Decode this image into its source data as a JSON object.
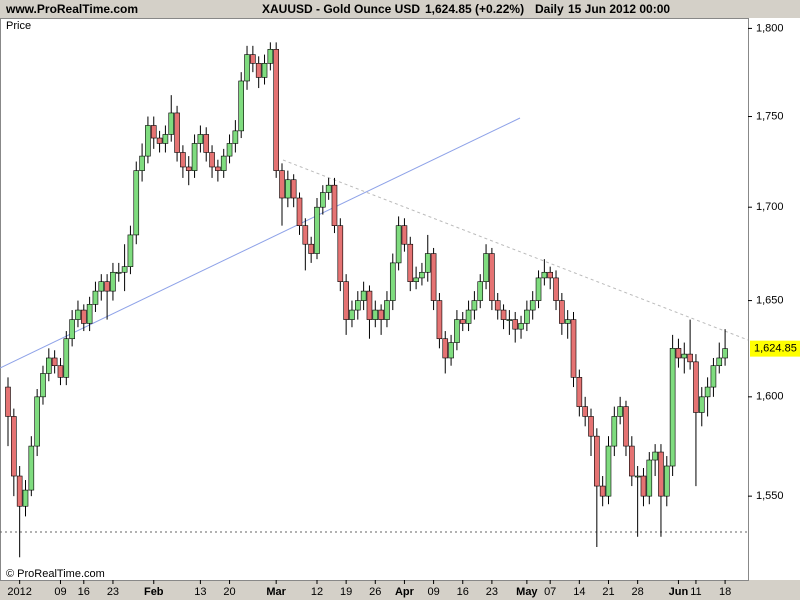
{
  "header": {
    "site": "www.ProRealTime.com",
    "instrument": "XAUUSD - Gold Ounce USD",
    "quote": "1,624.85 (+0.22%)",
    "period": "Daily",
    "datetime": "15 Jun 2012 00:00"
  },
  "chart_data": {
    "type": "candlestick",
    "panel_label": "Price",
    "copyright": "© ProRealTime.com",
    "log_scale": true,
    "up_color": "#7fdc7f",
    "down_color": "#e57373",
    "ylim": [
      1509,
      1806
    ],
    "yticks": [
      {
        "value": 1550,
        "label": "1,550"
      },
      {
        "value": 1600,
        "label": "1,600"
      },
      {
        "value": 1650,
        "label": "1,650"
      },
      {
        "value": 1700,
        "label": "1,700"
      },
      {
        "value": 1750,
        "label": "1,750"
      },
      {
        "value": 1800,
        "label": "1,800"
      }
    ],
    "last_price": {
      "value": 1624.85,
      "label": "1,624.85"
    },
    "categories": [
      null,
      null,
      "2012",
      null,
      null,
      null,
      null,
      null,
      null,
      "09",
      null,
      null,
      null,
      "16",
      null,
      null,
      null,
      null,
      "23",
      null,
      null,
      null,
      null,
      null,
      null,
      "Feb",
      null,
      null,
      null,
      null,
      null,
      null,
      null,
      "13",
      null,
      null,
      null,
      null,
      "20",
      null,
      null,
      null,
      null,
      null,
      null,
      null,
      "Mar",
      null,
      null,
      null,
      null,
      null,
      null,
      "12",
      null,
      null,
      null,
      null,
      "19",
      null,
      null,
      null,
      null,
      "26",
      null,
      null,
      null,
      null,
      "Apr",
      null,
      null,
      null,
      null,
      "09",
      null,
      null,
      null,
      null,
      "16",
      null,
      null,
      null,
      null,
      "23",
      null,
      null,
      null,
      null,
      null,
      "May",
      null,
      null,
      null,
      "07",
      null,
      null,
      null,
      null,
      "14",
      null,
      null,
      null,
      null,
      "21",
      null,
      null,
      null,
      null,
      "28",
      null,
      null,
      null,
      null,
      null,
      null,
      "Jun",
      null,
      null,
      "11",
      null,
      null,
      null,
      null,
      "18"
    ],
    "open": [
      1605,
      1590,
      1560,
      1545,
      1553,
      1575,
      1600,
      1612,
      1620,
      1616,
      1610,
      1630,
      1640,
      1645,
      1638,
      1648,
      1655,
      1660,
      1655,
      1665,
      1665,
      1668,
      1685,
      1720,
      1728,
      1745,
      1738,
      1735,
      1740,
      1752,
      1730,
      1722,
      1720,
      1735,
      1740,
      1730,
      1722,
      1720,
      1728,
      1735,
      1742,
      1770,
      1785,
      1780,
      1772,
      1780,
      1788,
      1720,
      1705,
      1715,
      1705,
      1690,
      1680,
      1675,
      1700,
      1708,
      1712,
      1690,
      1660,
      1640,
      1645,
      1650,
      1655,
      1640,
      1645,
      1640,
      1650,
      1670,
      1690,
      1680,
      1660,
      1662,
      1665,
      1675,
      1650,
      1630,
      1620,
      1628,
      1640,
      1638,
      1645,
      1650,
      1660,
      1675,
      1650,
      1645,
      1640,
      1640,
      1635,
      1638,
      1645,
      1650,
      1662,
      1665,
      1662,
      1650,
      1638,
      1640,
      1610,
      1595,
      1590,
      1580,
      1555,
      1550,
      1575,
      1590,
      1595,
      1575,
      1560,
      1560,
      1550,
      1568,
      1572,
      1550,
      1565,
      1625,
      1620,
      1622,
      1618,
      1592,
      1600,
      1605,
      1616,
      1620
    ],
    "high": [
      1610,
      1594,
      1565,
      1558,
      1580,
      1604,
      1616,
      1625,
      1624,
      1620,
      1634,
      1645,
      1650,
      1648,
      1652,
      1660,
      1664,
      1664,
      1670,
      1670,
      1680,
      1690,
      1725,
      1735,
      1750,
      1750,
      1742,
      1745,
      1762,
      1756,
      1734,
      1728,
      1740,
      1745,
      1744,
      1734,
      1726,
      1732,
      1740,
      1748,
      1775,
      1790,
      1790,
      1784,
      1785,
      1792,
      1792,
      1724,
      1720,
      1718,
      1708,
      1694,
      1684,
      1705,
      1712,
      1716,
      1716,
      1694,
      1664,
      1650,
      1655,
      1660,
      1658,
      1650,
      1648,
      1655,
      1675,
      1695,
      1694,
      1684,
      1668,
      1670,
      1685,
      1678,
      1654,
      1634,
      1632,
      1645,
      1644,
      1650,
      1655,
      1664,
      1680,
      1678,
      1654,
      1648,
      1645,
      1644,
      1642,
      1650,
      1655,
      1666,
      1672,
      1668,
      1666,
      1654,
      1645,
      1644,
      1614,
      1600,
      1594,
      1584,
      1560,
      1580,
      1595,
      1600,
      1598,
      1580,
      1565,
      1564,
      1572,
      1576,
      1576,
      1570,
      1632,
      1630,
      1628,
      1640,
      1622,
      1605,
      1610,
      1620,
      1628,
      1635
    ],
    "low": [
      1575,
      1550,
      1520,
      1540,
      1550,
      1570,
      1596,
      1608,
      1612,
      1606,
      1606,
      1626,
      1636,
      1634,
      1634,
      1644,
      1650,
      1640,
      1650,
      1660,
      1655,
      1664,
      1680,
      1714,
      1724,
      1732,
      1730,
      1730,
      1736,
      1725,
      1716,
      1712,
      1716,
      1730,
      1725,
      1716,
      1714,
      1716,
      1724,
      1730,
      1738,
      1765,
      1775,
      1766,
      1768,
      1776,
      1716,
      1690,
      1700,
      1700,
      1685,
      1666,
      1670,
      1672,
      1696,
      1704,
      1686,
      1655,
      1632,
      1636,
      1640,
      1645,
      1630,
      1636,
      1632,
      1636,
      1645,
      1666,
      1676,
      1655,
      1656,
      1658,
      1660,
      1645,
      1625,
      1612,
      1616,
      1624,
      1634,
      1634,
      1640,
      1646,
      1656,
      1645,
      1640,
      1635,
      1632,
      1628,
      1630,
      1634,
      1640,
      1646,
      1658,
      1656,
      1645,
      1632,
      1630,
      1605,
      1590,
      1585,
      1570,
      1525,
      1545,
      1546,
      1570,
      1586,
      1570,
      1555,
      1530,
      1545,
      1546,
      1560,
      1530,
      1545,
      1560,
      1615,
      1612,
      1614,
      1555,
      1585,
      1590,
      1600,
      1612,
      1616
    ],
    "close": [
      1590,
      1560,
      1545,
      1553,
      1575,
      1600,
      1612,
      1620,
      1616,
      1610,
      1630,
      1640,
      1645,
      1638,
      1648,
      1655,
      1660,
      1655,
      1665,
      1665,
      1668,
      1685,
      1720,
      1728,
      1745,
      1738,
      1735,
      1740,
      1752,
      1730,
      1722,
      1720,
      1735,
      1740,
      1730,
      1722,
      1720,
      1728,
      1735,
      1742,
      1770,
      1785,
      1780,
      1772,
      1780,
      1788,
      1720,
      1705,
      1715,
      1705,
      1690,
      1680,
      1675,
      1700,
      1708,
      1712,
      1690,
      1660,
      1640,
      1645,
      1650,
      1655,
      1640,
      1645,
      1640,
      1650,
      1670,
      1690,
      1680,
      1660,
      1662,
      1665,
      1675,
      1650,
      1630,
      1620,
      1628,
      1640,
      1638,
      1645,
      1650,
      1660,
      1675,
      1650,
      1645,
      1640,
      1640,
      1635,
      1638,
      1645,
      1650,
      1662,
      1665,
      1662,
      1650,
      1638,
      1640,
      1610,
      1595,
      1590,
      1580,
      1555,
      1550,
      1575,
      1590,
      1595,
      1575,
      1560,
      1560,
      1550,
      1568,
      1572,
      1550,
      1565,
      1625,
      1620,
      1622,
      1618,
      1592,
      1600,
      1605,
      1616,
      1620,
      1624.85
    ]
  }
}
